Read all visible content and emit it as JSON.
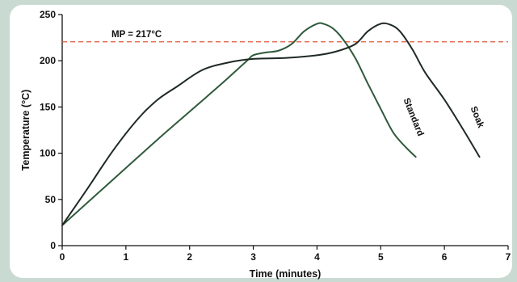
{
  "chart_data": {
    "type": "line",
    "title": "",
    "xlabel": "Time (minutes)",
    "ylabel": "Temperature (°C)",
    "xlim": [
      0,
      7
    ],
    "ylim": [
      0,
      250
    ],
    "x_ticks": [
      "0",
      "1",
      "2",
      "3",
      "4",
      "5",
      "6",
      "7"
    ],
    "y_ticks": [
      "0",
      "50",
      "100",
      "150",
      "200",
      "250"
    ],
    "grid": false,
    "reference_line": {
      "label": "MP = 217°C",
      "value": 217,
      "color": "#e0553a",
      "style": "dashed"
    },
    "series": [
      {
        "name": "Standard",
        "color": "#2f5a3c",
        "x": [
          0,
          0.5,
          1,
          1.5,
          2,
          2.5,
          2.9,
          3.0,
          3.2,
          3.4,
          3.6,
          3.8,
          4.0,
          4.1,
          4.25,
          4.4,
          4.6,
          4.8,
          5.0,
          5.2,
          5.4,
          5.55
        ],
        "y": [
          22,
          53,
          84,
          115,
          145,
          175,
          200,
          206,
          209,
          211,
          218,
          232,
          240,
          240,
          235,
          224,
          203,
          175,
          148,
          122,
          106,
          96
        ]
      },
      {
        "name": "Soak",
        "color": "#1e2a23",
        "x": [
          0,
          0.4,
          0.8,
          1.2,
          1.5,
          1.8,
          2.2,
          2.6,
          3.0,
          3.5,
          4.0,
          4.3,
          4.6,
          4.8,
          5.0,
          5.15,
          5.3,
          5.5,
          5.7,
          6.0,
          6.3,
          6.55
        ],
        "y": [
          22,
          62,
          103,
          138,
          158,
          172,
          190,
          198,
          202,
          203,
          206,
          210,
          218,
          232,
          240,
          239,
          232,
          212,
          187,
          158,
          125,
          96
        ]
      }
    ]
  }
}
